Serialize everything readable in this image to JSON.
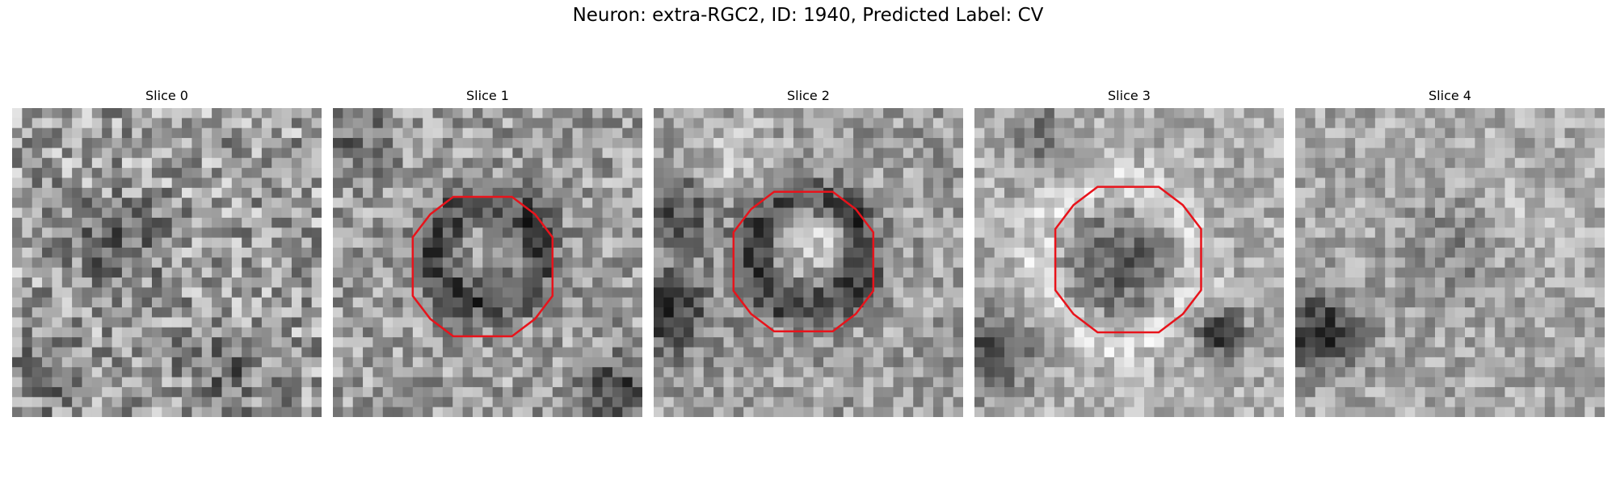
{
  "figure": {
    "title": "Neuron: extra-RGC2, ID: 1940, Predicted Label: CV"
  },
  "slices": [
    {
      "label": "Slice 0",
      "has_outline": false
    },
    {
      "label": "Slice 1",
      "has_outline": true
    },
    {
      "label": "Slice 2",
      "has_outline": true
    },
    {
      "label": "Slice 3",
      "has_outline": true
    },
    {
      "label": "Slice 4",
      "has_outline": false
    }
  ],
  "colors": {
    "outline": "#e8131b",
    "colormap": "gray"
  }
}
